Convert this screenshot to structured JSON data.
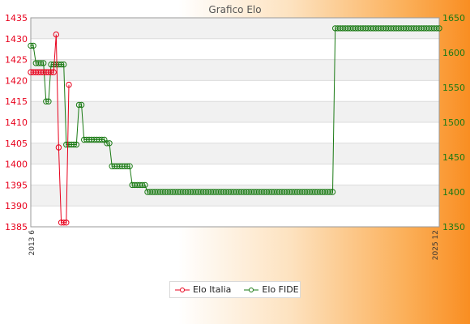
{
  "chart_data": {
    "type": "line",
    "title": "Grafico Elo",
    "x_first": "2013 6",
    "x_last": "2025 12",
    "y_left": {
      "min": 1385,
      "max": 1435,
      "step": 5,
      "color": "#e8001c"
    },
    "y_right": {
      "min": 1350,
      "max": 1650,
      "step": 50,
      "color": "#1a7a14"
    },
    "grid": true,
    "legend_position": "bottom",
    "series": [
      {
        "name": "Elo Italia",
        "axis": "left",
        "color": "#e8001c",
        "values": [
          1422,
          1422,
          1422,
          1422,
          1422,
          1422,
          1422,
          1422,
          1422,
          1422,
          1431,
          1404,
          1386,
          1386,
          1386,
          1419
        ]
      },
      {
        "name": "Elo FIDE",
        "axis": "right",
        "color": "#1a7a14",
        "values": [
          1610,
          1610,
          1585,
          1585,
          1585,
          1585,
          1530,
          1530,
          1583,
          1583,
          1583,
          1583,
          1583,
          1583,
          1468,
          1468,
          1468,
          1468,
          1468,
          1525,
          1525,
          1475,
          1475,
          1475,
          1475,
          1475,
          1475,
          1475,
          1475,
          1475,
          1470,
          1470,
          1437,
          1437,
          1437,
          1437,
          1437,
          1437,
          1437,
          1437,
          1410,
          1410,
          1410,
          1410,
          1410,
          1410,
          1400,
          1400,
          1400,
          1400,
          1400,
          1400,
          1400,
          1400,
          1400,
          1400,
          1400,
          1400,
          1400,
          1400,
          1400,
          1400,
          1400,
          1400,
          1400,
          1400,
          1400,
          1400,
          1400,
          1400,
          1400,
          1400,
          1400,
          1400,
          1400,
          1400,
          1400,
          1400,
          1400,
          1400,
          1400,
          1400,
          1400,
          1400,
          1400,
          1400,
          1400,
          1400,
          1400,
          1400,
          1400,
          1400,
          1400,
          1400,
          1400,
          1400,
          1400,
          1400,
          1400,
          1400,
          1400,
          1400,
          1400,
          1400,
          1400,
          1400,
          1400,
          1400,
          1400,
          1400,
          1400,
          1400,
          1400,
          1400,
          1400,
          1400,
          1400,
          1400,
          1400,
          1400,
          1635,
          1635,
          1635,
          1635,
          1635,
          1635,
          1635,
          1635,
          1635,
          1635,
          1635,
          1635,
          1635,
          1635,
          1635,
          1635,
          1635,
          1635,
          1635,
          1635,
          1635,
          1635,
          1635,
          1635,
          1635,
          1635,
          1635,
          1635,
          1635,
          1635,
          1635,
          1635,
          1635,
          1635,
          1635,
          1635,
          1635,
          1635,
          1635,
          1635,
          1635,
          1635
        ]
      }
    ]
  }
}
